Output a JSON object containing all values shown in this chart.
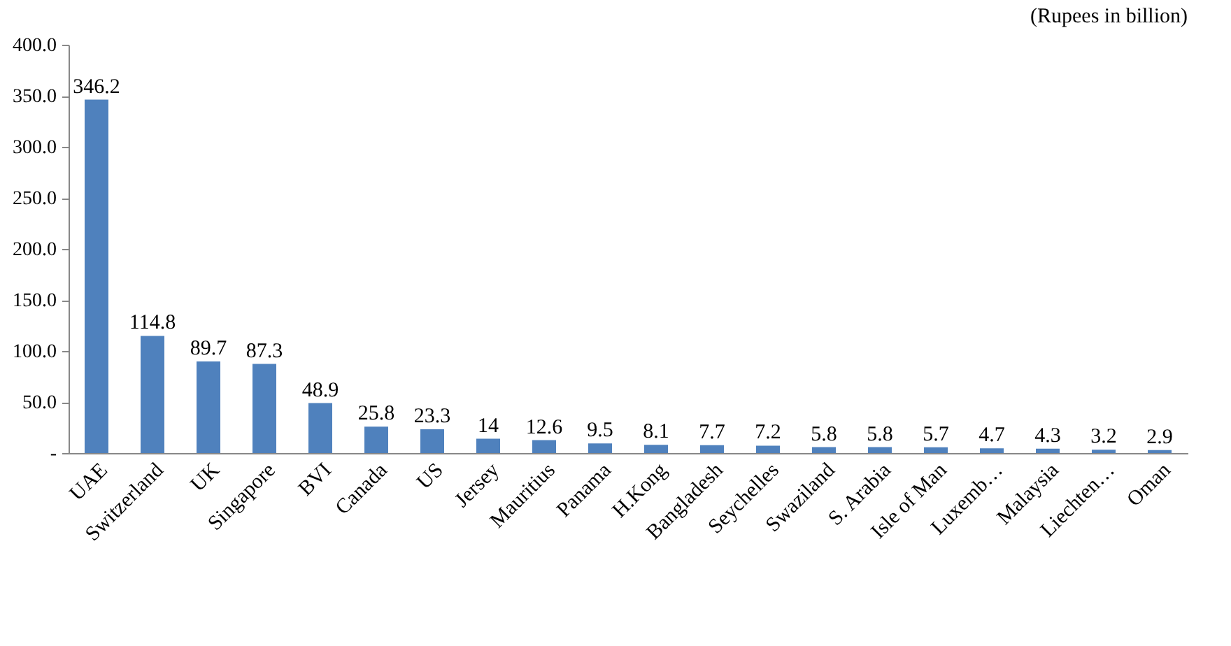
{
  "chart_data": {
    "type": "bar",
    "ylabel": "(Rupees in billion)",
    "categories": [
      "UAE",
      "Switzerland",
      "UK",
      "Singapore",
      "BVI",
      "Canada",
      "US",
      "Jersey",
      "Mauritius",
      "Panama",
      "H.Kong",
      "Bangladesh",
      "Seychelles",
      "Swaziland",
      "S. Arabia",
      "Isle of Man",
      "Luxemb…",
      "Malaysia",
      "Liechten…",
      "Oman"
    ],
    "values": [
      346.2,
      114.8,
      89.7,
      87.3,
      48.9,
      25.8,
      23.3,
      14,
      12.6,
      9.5,
      8.1,
      7.7,
      7.2,
      5.8,
      5.8,
      5.7,
      4.7,
      4.3,
      3.2,
      2.9
    ],
    "color": "#4f81bd",
    "ylim": [
      0,
      400
    ],
    "yticks": [
      {
        "value": 0,
        "label": "-"
      },
      {
        "value": 50,
        "label": "50.0"
      },
      {
        "value": 100,
        "label": "100.0"
      },
      {
        "value": 150,
        "label": "150.0"
      },
      {
        "value": 200,
        "label": "200.0"
      },
      {
        "value": 250,
        "label": "250.0"
      },
      {
        "value": 300,
        "label": "300.0"
      },
      {
        "value": 350,
        "label": "350.0"
      },
      {
        "value": 400,
        "label": "400.0"
      }
    ],
    "data_labels": true,
    "grid": false
  }
}
